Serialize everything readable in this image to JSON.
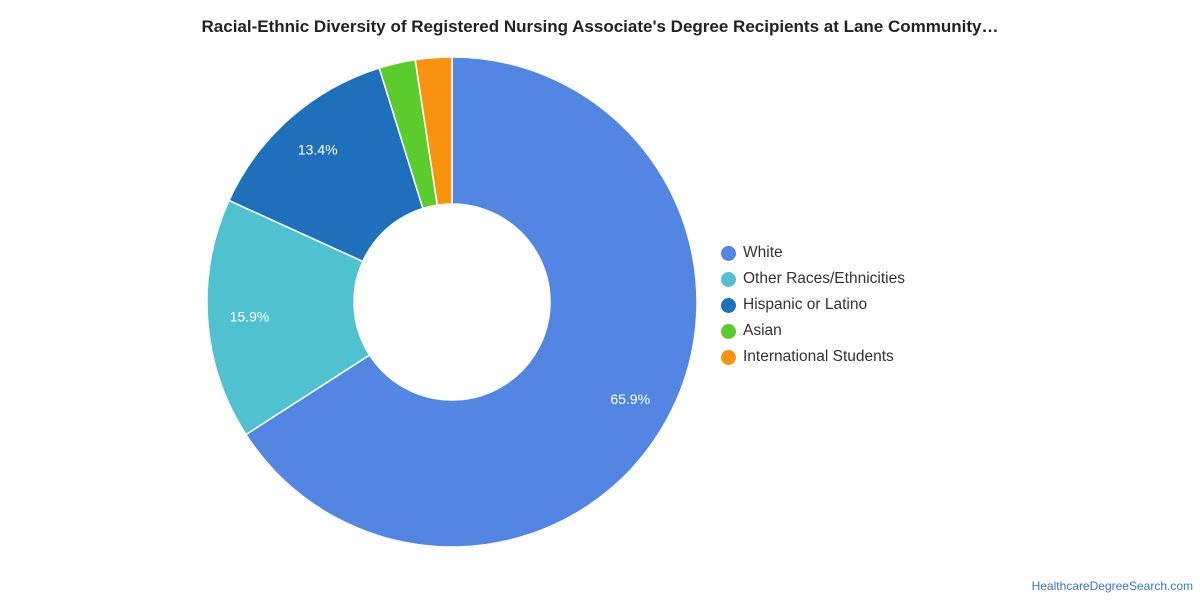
{
  "chart_data": {
    "type": "pie",
    "variant": "donut",
    "title": "Racial-Ethnic Diversity of Registered Nursing Associate's Degree Recipients at Lane Community…",
    "slices": [
      {
        "label": "White",
        "value": 65.9,
        "value_label": "65.9%",
        "color": "#5286e2"
      },
      {
        "label": "Other Races/Ethnicities",
        "value": 15.9,
        "value_label": "15.9%",
        "color": "#50c1cf"
      },
      {
        "label": "Hispanic or Latino",
        "value": 13.4,
        "value_label": "13.4%",
        "color": "#1f70bb"
      },
      {
        "label": "Asian",
        "value": 2.4,
        "value_label": "",
        "color": "#5ccc2c"
      },
      {
        "label": "International Students",
        "value": 2.4,
        "value_label": "",
        "color": "#f7930e"
      }
    ],
    "legend_position": "right"
  },
  "source_text": "HealthcareDegreeSearch.com"
}
